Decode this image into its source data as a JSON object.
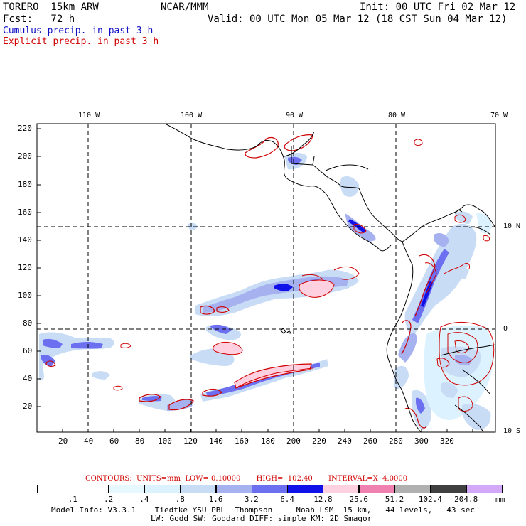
{
  "header": {
    "line1_left": "TORERO  15km ARW",
    "line1_mid": "NCAR/MMM",
    "line1_right": "Init: 00 UTC Fri 02 Mar 12",
    "line2_left": "Fcst:   72 h",
    "line2_right": "Valid: 00 UTC Mon 05 Mar 12 (18 CST Sun 04 Mar 12)",
    "cumulus_label": "Cumulus precip. in past 3 h",
    "explicit_label": "Explicit precip. in past 3 h"
  },
  "map": {
    "longitude_labels": [
      "110 W",
      "100 W",
      "90 W",
      "80 W",
      "70 W"
    ],
    "latitude_labels": [
      "10 N",
      "0",
      "10 S"
    ],
    "x_ticks": [
      "20",
      "40",
      "60",
      "80",
      "100",
      "120",
      "140",
      "160",
      "180",
      "200",
      "220",
      "240",
      "260",
      "280",
      "300",
      "320"
    ],
    "y_ticks": [
      "20",
      "40",
      "60",
      "80",
      "100",
      "120",
      "140",
      "160",
      "180",
      "200",
      "220"
    ]
  },
  "legend": {
    "contours_label": "CONTOURS:  UNITS=mm  LOW= 0.10000       HIGH=  102.40       INTERVAL=X  4.0000",
    "values": [
      ".1",
      ".2",
      ".4",
      ".8",
      "1.6",
      "3.2",
      "6.4",
      "12.8",
      "25.6",
      "51.2",
      "102.4",
      "204.8"
    ],
    "unit": "mm",
    "colors": [
      "#ffffff",
      "#ffffff",
      "#e8f8ff",
      "#ddf2ff",
      "#c8dcf6",
      "#a6b2f0",
      "#6c70f0",
      "#1010e8",
      "#ffd0e0",
      "#f080b0",
      "#b0b0b0",
      "#404040",
      "#d4a8f8"
    ]
  },
  "footer": {
    "line1": "Model Info: V3.3.1    Tiedtke YSU PBL  Thompson     Noah LSM  15 km,   44 levels,   43 sec",
    "line2": "LW: Godd SW: Goddard DIFF: simple KM: 2D Smagor"
  }
}
